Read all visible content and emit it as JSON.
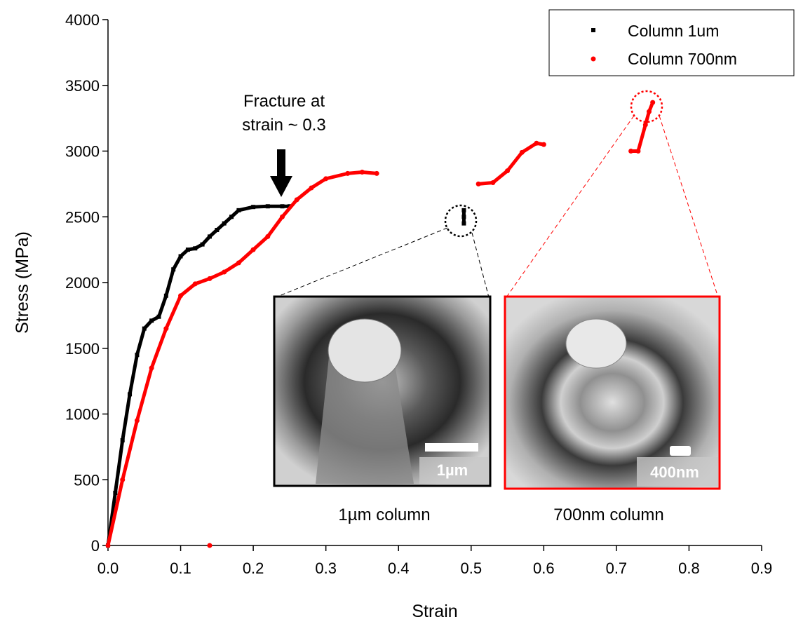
{
  "chart_data": {
    "type": "scatter",
    "x_label": "Strain",
    "y_label": "Stress (MPa)",
    "xlim": [
      0,
      0.9
    ],
    "ylim": [
      0,
      4000
    ],
    "xticks": [
      {
        "value": 0,
        "label": "0.0"
      },
      0.1,
      0.2,
      0.3,
      0.4,
      0.5,
      0.6,
      0.7,
      0.8,
      0.9
    ],
    "yticks": [
      0,
      500,
      1000,
      1500,
      2000,
      2500,
      3000,
      3500,
      4000
    ],
    "legend": "upper right",
    "series": [
      {
        "name": "Column 1um",
        "color": "#000000",
        "x": [
          0,
          0.01,
          0.02,
          0.03,
          0.04,
          0.05,
          0.06,
          0.07,
          0.08,
          0.09,
          0.1,
          0.11,
          0.12,
          0.13,
          0.14,
          0.15,
          0.16,
          0.17,
          0.18,
          0.2,
          0.22,
          0.24,
          0.25,
          0.49,
          0.49,
          0.49,
          0.49
        ],
        "values": [
          0,
          400,
          800,
          1150,
          1450,
          1650,
          1710,
          1740,
          1900,
          2100,
          2200,
          2250,
          2260,
          2290,
          2350,
          2400,
          2450,
          2500,
          2550,
          2575,
          2580,
          2580,
          2580,
          null,
          2450,
          2500,
          2550
        ]
      },
      {
        "name": "Column 700nm",
        "color": "#ff0000",
        "x": [
          0,
          0.02,
          0.04,
          0.06,
          0.08,
          0.1,
          0.12,
          0.14,
          0.16,
          0.18,
          0.2,
          0.22,
          0.24,
          0.26,
          0.28,
          0.3,
          0.33,
          0.35,
          0.37,
          0.39,
          0.51,
          0.53,
          0.55,
          0.57,
          0.59,
          0.6,
          0.69,
          0.72,
          0.73,
          0.74,
          0.745,
          0.75,
          0.13,
          0.14
        ],
        "values": [
          0,
          500,
          950,
          1350,
          1650,
          1900,
          1990,
          2030,
          2080,
          2150,
          2250,
          2350,
          2500,
          2630,
          2720,
          2790,
          2830,
          2840,
          2830,
          null,
          2750,
          2760,
          2850,
          2990,
          3060,
          3050,
          null,
          3000,
          3000,
          3200,
          3300,
          3370,
          null,
          0
        ]
      }
    ],
    "annotations": [
      "Fracture at",
      "strain ~ 0.3"
    ],
    "insets": [
      {
        "scale_bar": "1µm",
        "caption": "1µm column"
      },
      {
        "scale_bar": "400nm",
        "caption": "700nm column"
      }
    ]
  }
}
